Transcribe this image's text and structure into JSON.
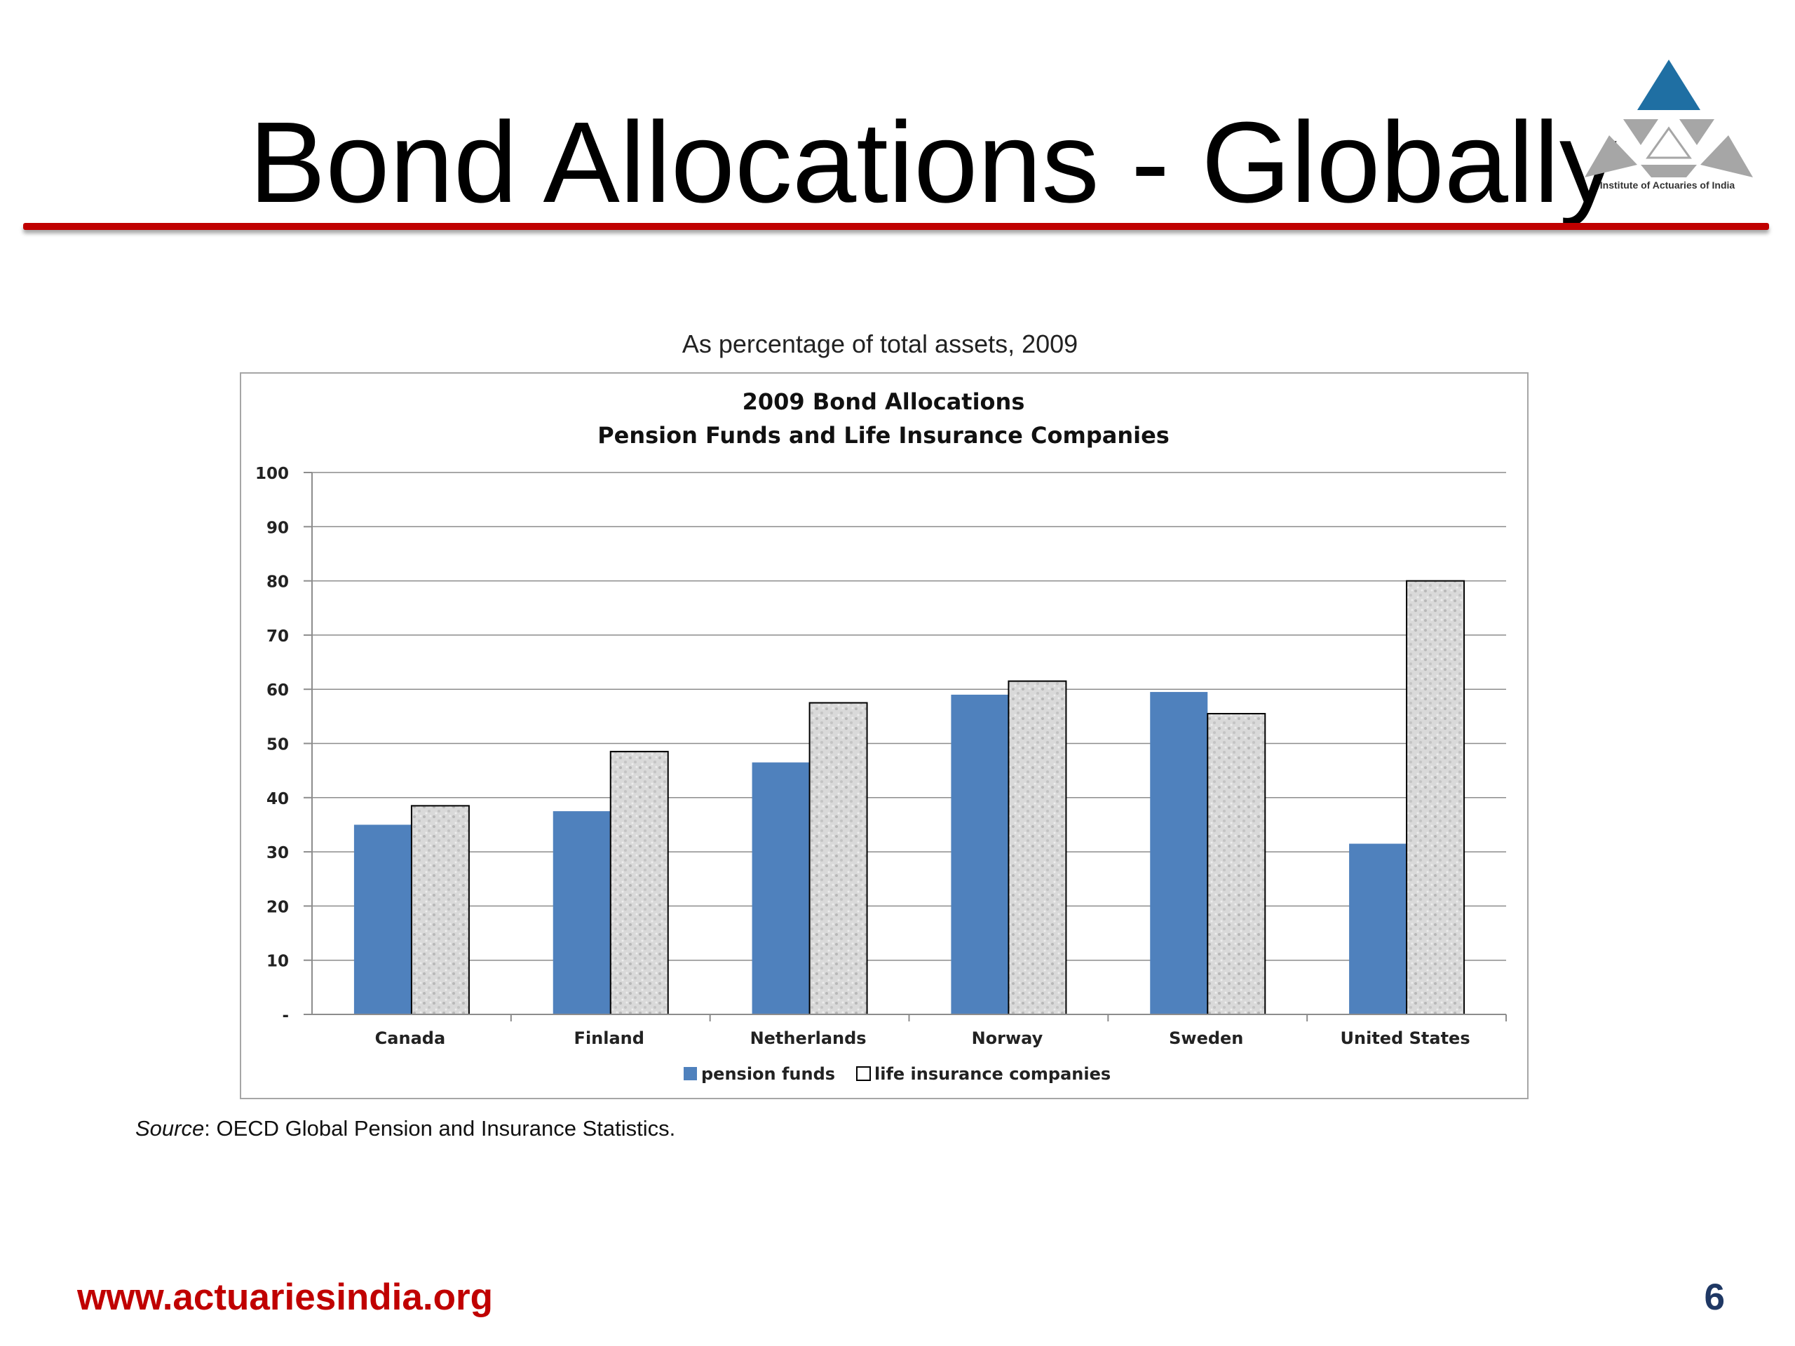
{
  "slide": {
    "title": "Bond Allocations - Globally",
    "logo_text": "Institute of Actuaries of India",
    "caption": "As percentage of total assets, 2009",
    "source_label": "Source",
    "source_rest": ": OECD Global Pension and Insurance Statistics.",
    "footer_url": "www.actuariesindia.org",
    "page_number": "6"
  },
  "colors": {
    "title_rule": "#c00000",
    "footer_url": "#c00000",
    "page_number": "#1f3864",
    "logo_blue": "#1f6fa3",
    "logo_grey": "#a6a6a6",
    "pension_funds": "#4f81bd",
    "life_insurance": "#d9d9d9"
  },
  "chart_data": {
    "type": "bar",
    "title_line1": "2009 Bond Allocations",
    "title_line2": "Pension Funds and Life Insurance Companies",
    "categories": [
      "Canada",
      "Finland",
      "Netherlands",
      "Norway",
      "Sweden",
      "United States"
    ],
    "series": [
      {
        "name": "pension funds",
        "values": [
          35,
          37.5,
          46.5,
          59,
          59.5,
          31.5
        ],
        "color": "#4f81bd"
      },
      {
        "name": "life insurance companies",
        "values": [
          38.5,
          48.5,
          57.5,
          61.5,
          55.5,
          80
        ],
        "color": "#d9d9d9",
        "pattern": "textured"
      }
    ],
    "ylim": [
      0,
      100
    ],
    "yticks": [
      "-",
      "10",
      "20",
      "30",
      "40",
      "50",
      "60",
      "70",
      "80",
      "90",
      "100"
    ],
    "grid": true,
    "legend": "bottom"
  }
}
